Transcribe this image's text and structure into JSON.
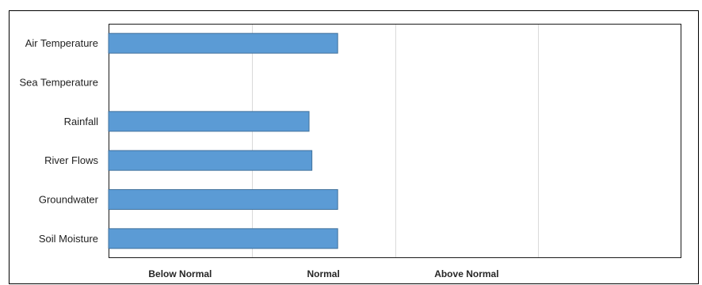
{
  "chart_data": {
    "type": "bar",
    "orientation": "horizontal",
    "categories": [
      "Air Temperature",
      "Sea Temperature",
      "Rainfall",
      "River Flows",
      "Groundwater",
      "Soil Moisture"
    ],
    "values": [
      1.6,
      null,
      1.4,
      1.42,
      1.6,
      1.6
    ],
    "xlim": [
      0,
      4
    ],
    "x_tick_labels": [
      {
        "value": 0.5,
        "label": "Below Normal"
      },
      {
        "value": 1.5,
        "label": "Normal"
      },
      {
        "value": 2.5,
        "label": "Above Normal"
      }
    ],
    "grid": "vertical",
    "legend": "none",
    "bar_color": "#5B9BD5",
    "bar_edge_color": "#41719C"
  }
}
